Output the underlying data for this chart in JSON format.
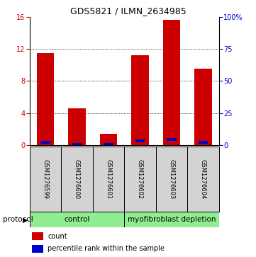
{
  "title": "GDS5821 / ILMN_2634985",
  "samples": [
    "GSM1276599",
    "GSM1276600",
    "GSM1276601",
    "GSM1276602",
    "GSM1276603",
    "GSM1276604"
  ],
  "counts": [
    11.5,
    4.6,
    1.4,
    11.2,
    15.6,
    9.5
  ],
  "percentile_ranks": [
    2.0,
    0.5,
    0.35,
    3.5,
    4.5,
    2.0
  ],
  "bar_color": "#cc0000",
  "percentile_color": "#0000cc",
  "bar_width": 0.55,
  "ylim_left": [
    0,
    16
  ],
  "ylim_right": [
    0,
    100
  ],
  "yticks_left": [
    0,
    4,
    8,
    12,
    16
  ],
  "yticks_right": [
    0,
    25,
    50,
    75,
    100
  ],
  "ytick_labels_right": [
    "0",
    "25",
    "50",
    "75",
    "100%"
  ],
  "grid_lines": [
    4,
    8,
    12
  ],
  "sample_box_color": "#d3d3d3",
  "protocol_color": "#90ee90",
  "legend_count_label": "count",
  "legend_percentile_label": "percentile rank within the sample",
  "left_axis_color": "#cc0000",
  "right_axis_color": "#0000cc",
  "title_fontsize": 9,
  "tick_fontsize": 7,
  "sample_fontsize": 6,
  "protocol_fontsize": 7.5,
  "legend_fontsize": 7
}
